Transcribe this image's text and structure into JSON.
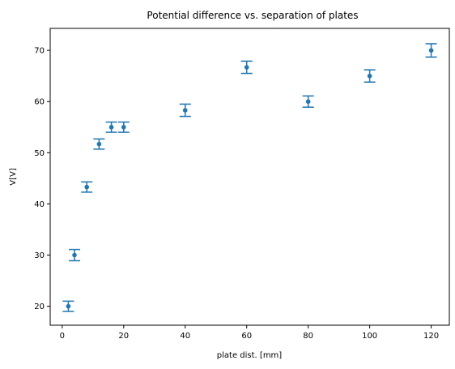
{
  "chart_data": {
    "type": "scatter",
    "title": "Potential difference vs. separation of plates",
    "xlabel": "plate dist. [mm]",
    "ylabel": "V[V]",
    "xlim": [
      -3.9,
      125.9
    ],
    "ylim": [
      16.3,
      74.3
    ],
    "xticks": [
      0,
      20,
      40,
      60,
      80,
      100,
      120
    ],
    "yticks": [
      20,
      30,
      40,
      50,
      60,
      70
    ],
    "grid": false,
    "legend": "none",
    "series": [
      {
        "color": "#1f77b4",
        "marker": "circle",
        "errorbars": true,
        "points": [
          {
            "x": 2,
            "y": 20.0,
            "err": 1.0
          },
          {
            "x": 4,
            "y": 30.0,
            "err": 1.1
          },
          {
            "x": 8,
            "y": 43.3,
            "err": 1.0
          },
          {
            "x": 12,
            "y": 51.7,
            "err": 1.0
          },
          {
            "x": 16,
            "y": 55.0,
            "err": 1.0
          },
          {
            "x": 20,
            "y": 55.0,
            "err": 1.0
          },
          {
            "x": 40,
            "y": 58.3,
            "err": 1.2
          },
          {
            "x": 60,
            "y": 66.7,
            "err": 1.2
          },
          {
            "x": 80,
            "y": 60.0,
            "err": 1.1
          },
          {
            "x": 100,
            "y": 65.0,
            "err": 1.2
          },
          {
            "x": 120,
            "y": 70.0,
            "err": 1.3
          }
        ]
      }
    ]
  }
}
